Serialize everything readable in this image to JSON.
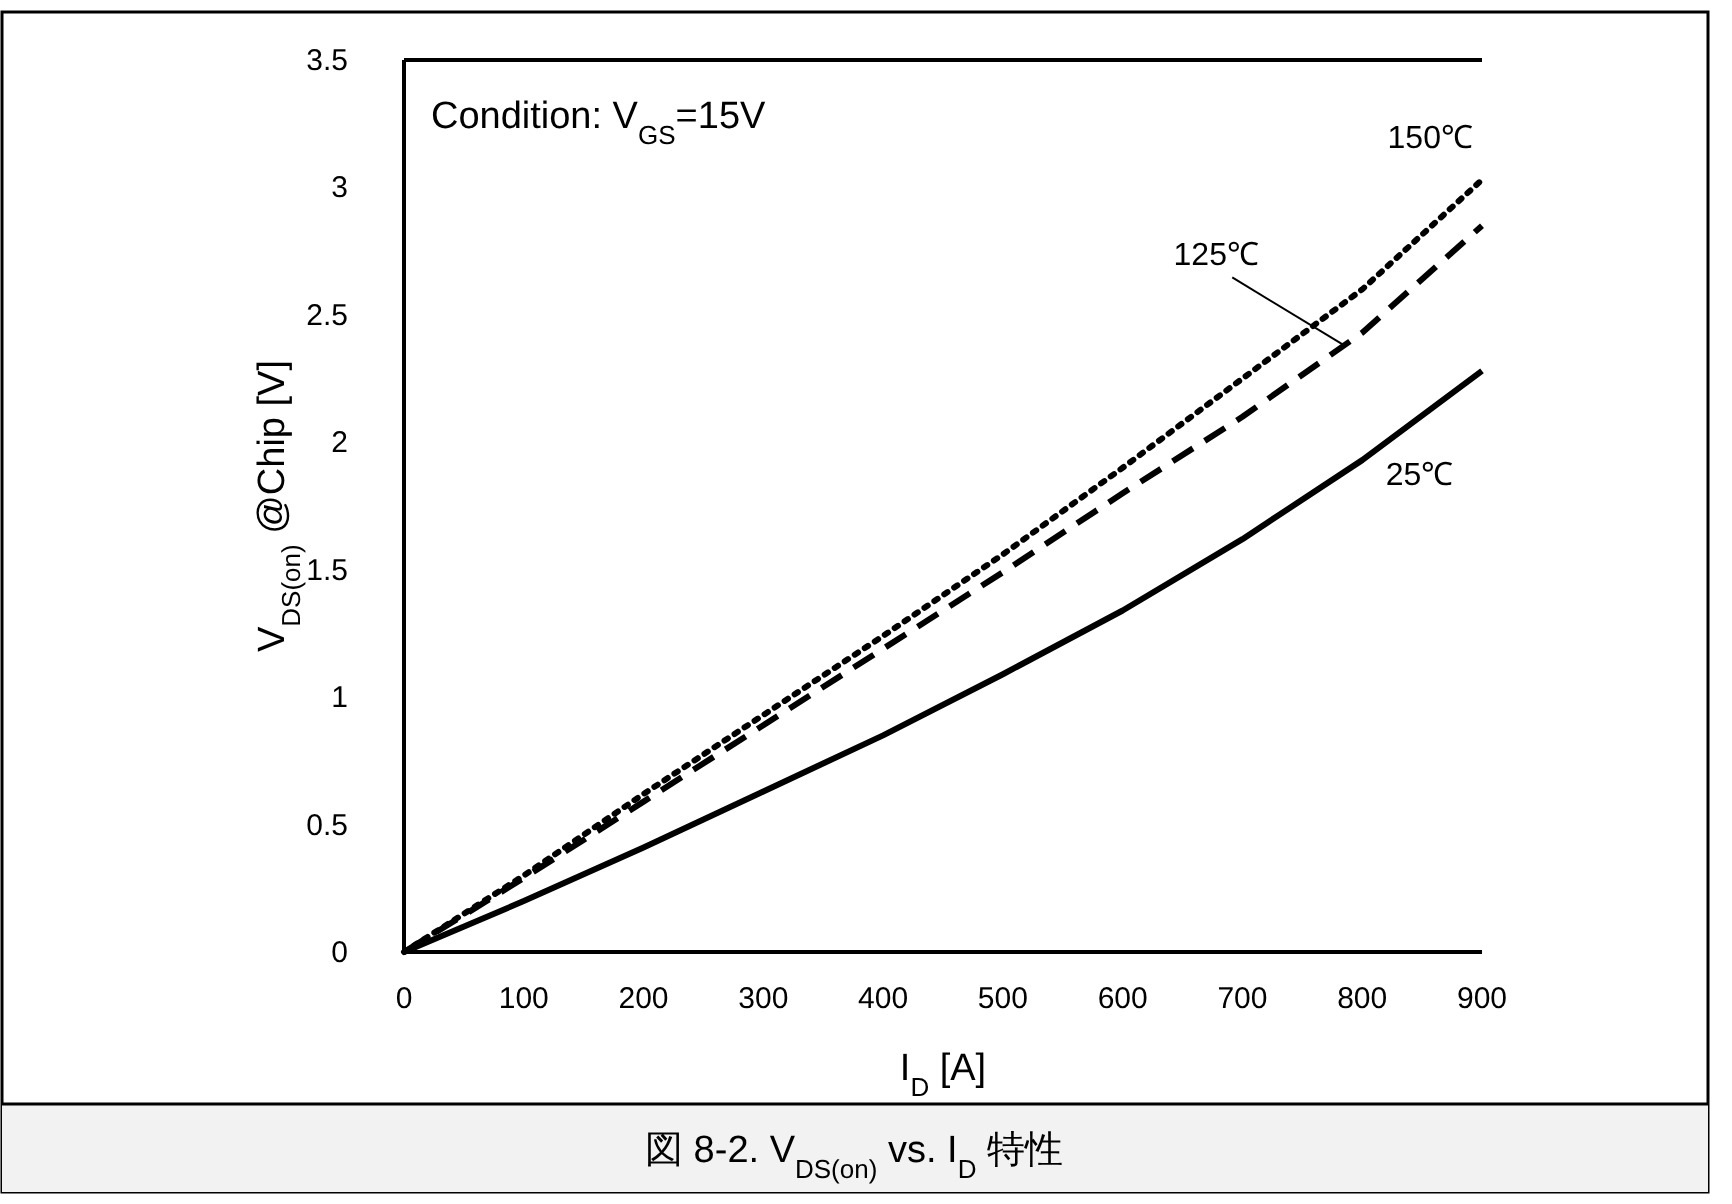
{
  "chart_data": {
    "type": "line",
    "title": "図 8-2. V$_{DS(on)}$ vs. I$_{D}$ 特性",
    "xlabel": "I$_{D}$ [A]",
    "ylabel": "V$_{DS(on)}$ @Chip [V]",
    "x": [
      0,
      100,
      200,
      300,
      400,
      500,
      600,
      700,
      800,
      900
    ],
    "series": [
      {
        "color": "#000000",
        "line_style": "dotted",
        "values": [
          0,
          0.3,
          0.62,
          0.93,
          1.24,
          1.56,
          1.9,
          2.25,
          2.6,
          3.03
        ]
      },
      {
        "color": "#000000",
        "line_style": "dashed",
        "values": [
          0,
          0.29,
          0.59,
          0.89,
          1.19,
          1.49,
          1.8,
          2.1,
          2.43,
          2.85
        ]
      },
      {
        "color": "#000000",
        "line_style": "solid",
        "values": [
          0,
          0.2,
          0.41,
          0.63,
          0.85,
          1.09,
          1.34,
          1.62,
          1.93,
          2.28
        ]
      }
    ],
    "xlim": [
      0,
      900
    ],
    "xticks": [
      0,
      100,
      200,
      300,
      400,
      500,
      600,
      700,
      800,
      900
    ],
    "ylim": [
      0,
      3.5
    ],
    "yticks": [
      0,
      0.5,
      1,
      1.5,
      2,
      2.5,
      3,
      3.5
    ],
    "grid": false,
    "marker": "none",
    "annotations": [
      "Condition: V$_{GS}$=15V",
      "150℃",
      {
        "text": "125℃",
        "x": 785,
        "y": 2.38
      },
      "25℃"
    ]
  }
}
